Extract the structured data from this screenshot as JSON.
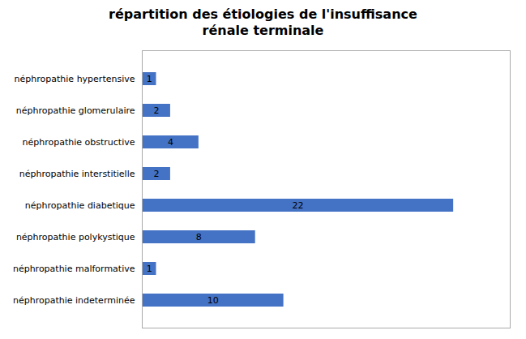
{
  "chart_data": {
    "type": "bar",
    "orientation": "horizontal",
    "title": "répartition des étiologies de l'insuffisance\nrénale terminale",
    "categories": [
      "néphropathie hypertensive",
      "néphropathie glomerulaire",
      "néphropathie obstructive",
      "néphropathie interstitielle",
      "néphropathie diabetique",
      "néphropathie polykystique",
      "néphropathie malformative",
      "néphropathie indeterminée"
    ],
    "values": [
      1,
      2,
      4,
      2,
      22,
      8,
      1,
      10
    ],
    "color": "#4472C4",
    "xlim": [
      0,
      26
    ],
    "xticks": [],
    "data_labels": true,
    "tick_labels": "y"
  }
}
